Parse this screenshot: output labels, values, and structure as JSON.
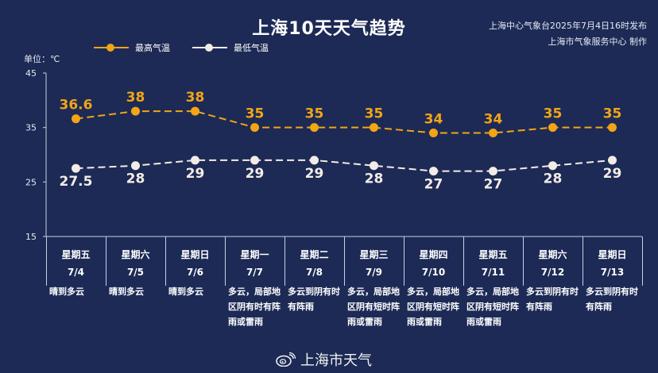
{
  "title": "上海10天天气趋势",
  "source_line1": "上海中心气象台2025年7月4日16时发布",
  "source_line2": "上海市气象服务中心 制作",
  "unit_label": "单位：℃",
  "legend": {
    "high": "最高气温",
    "low": "最低气温"
  },
  "colors": {
    "background": "#1c2a55",
    "high": "#f2a516",
    "low": "#f3ece6"
  },
  "footer_icon": "weibo-icon",
  "footer_text": "上海市天气",
  "days": [
    {
      "weekday": "星期五",
      "date": "7/4",
      "weather": "晴到多云"
    },
    {
      "weekday": "星期六",
      "date": "7/5",
      "weather": "晴到多云"
    },
    {
      "weekday": "星期日",
      "date": "7/6",
      "weather": "晴到多云"
    },
    {
      "weekday": "星期一",
      "date": "7/7",
      "weather": "多云，局部地区阴有时有阵雨或雷雨"
    },
    {
      "weekday": "星期二",
      "date": "7/8",
      "weather": "多云到阴有时有阵雨"
    },
    {
      "weekday": "星期三",
      "date": "7/9",
      "weather": "多云，局部地区阴有短时阵雨或雷雨"
    },
    {
      "weekday": "星期四",
      "date": "7/10",
      "weather": "多云，局部地区阴有短时阵雨或雷雨"
    },
    {
      "weekday": "星期五",
      "date": "7/11",
      "weather": "多云，局部地区阴有短时阵雨或雷雨"
    },
    {
      "weekday": "星期六",
      "date": "7/12",
      "weather": "多云到阴有时有阵雨"
    },
    {
      "weekday": "星期日",
      "date": "7/13",
      "weather": "多云到阴有时有阵雨"
    }
  ],
  "chart_data": {
    "type": "line",
    "x": [
      "7/4",
      "7/5",
      "7/6",
      "7/7",
      "7/8",
      "7/9",
      "7/10",
      "7/11",
      "7/12",
      "7/13"
    ],
    "series": [
      {
        "name": "最高气温",
        "values": [
          36.6,
          38,
          38,
          35,
          35,
          35,
          34,
          34,
          35,
          35
        ]
      },
      {
        "name": "最低气温",
        "values": [
          27.5,
          28,
          29,
          29,
          29,
          28,
          27,
          27,
          28,
          29
        ]
      }
    ],
    "ylim": [
      15,
      45
    ],
    "yticks": [
      15,
      25,
      35,
      45
    ],
    "ylabel": "单位：℃",
    "line_style": "dashed",
    "grid": false,
    "legend_position": "top-left"
  }
}
